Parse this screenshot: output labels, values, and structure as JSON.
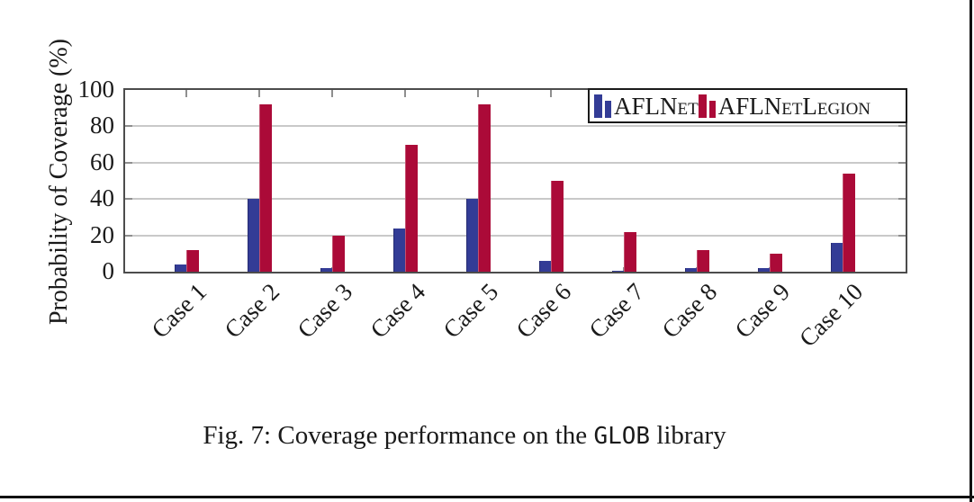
{
  "figure": {
    "caption": {
      "prefix": "Fig. 7: Coverage performance on the ",
      "code": "GLOB",
      "suffix": " library"
    }
  },
  "chart_data": {
    "type": "bar",
    "title": "",
    "xlabel": "",
    "ylabel": "Probability of Coverage (%)",
    "ylim": [
      0,
      100
    ],
    "yticks": [
      0,
      20,
      40,
      60,
      80,
      100
    ],
    "grid": "horizontal gridlines at 20, 40, 60, 80",
    "legend_position": "top-right inside plot",
    "categories": [
      "Case 1",
      "Case 2",
      "Case 3",
      "Case 4",
      "Case 5",
      "Case 6",
      "Case 7",
      "Case 8",
      "Case 9",
      "Case 10"
    ],
    "series": [
      {
        "name": "AFLNet",
        "color": "#333C96",
        "values": [
          4,
          40,
          2,
          24,
          40,
          6,
          0.5,
          2,
          2,
          16
        ]
      },
      {
        "name": "AFLNetLegion",
        "color": "#AB0A38",
        "values": [
          12,
          92,
          20,
          70,
          92,
          50,
          22,
          12,
          10,
          54
        ]
      }
    ]
  },
  "colors": {
    "axis_border": "#4c4c4c",
    "gridline": "#c9c9c9",
    "tick": "#8f8f8f",
    "bar_blue_edge": "#262C73",
    "bar_red_edge": "#C2516F",
    "text": "#1a1a1a"
  }
}
